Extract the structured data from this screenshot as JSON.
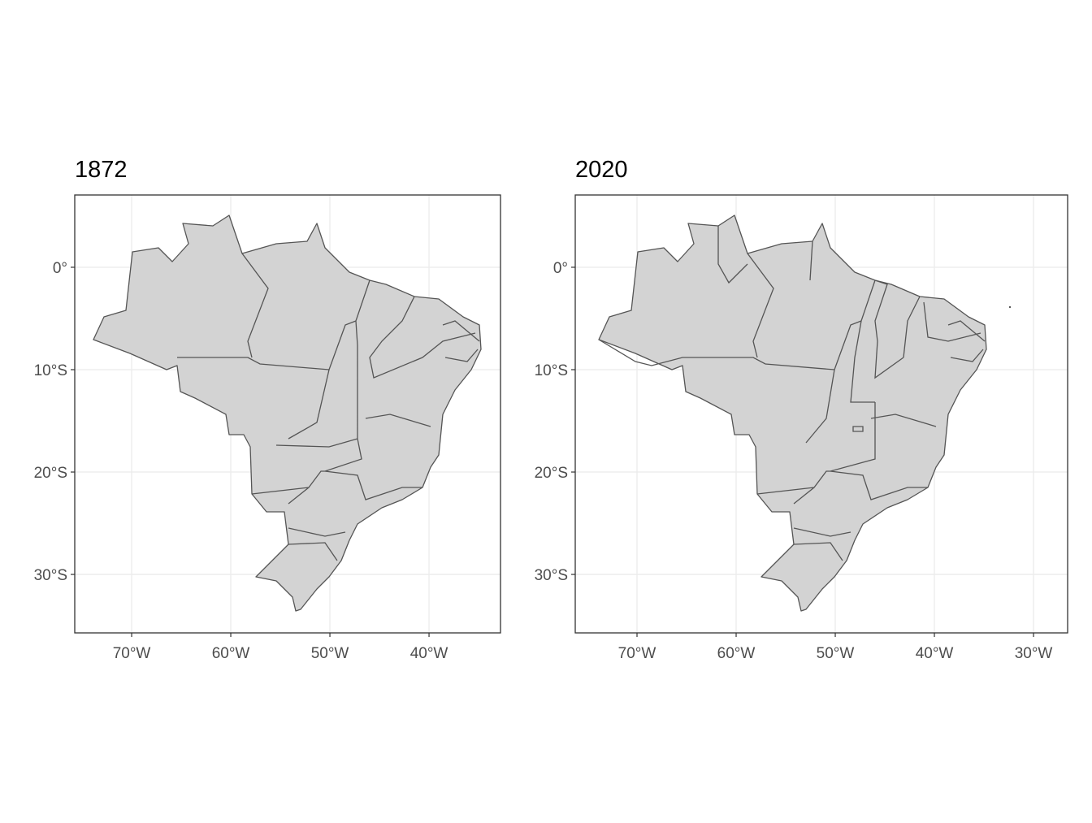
{
  "chart_data": [
    {
      "type": "map",
      "title": "1872",
      "grid": true,
      "xlim": [
        -75.74,
        -32.79
      ],
      "ylim": [
        -35.71,
        7.06
      ],
      "xticks": [
        {
          "value": -70,
          "label": "70°W"
        },
        {
          "value": -60,
          "label": "60°W"
        },
        {
          "value": -50,
          "label": "50°W"
        },
        {
          "value": -40,
          "label": "40°W"
        }
      ],
      "yticks": [
        {
          "value": 0,
          "label": "0°"
        },
        {
          "value": -10,
          "label": "10°S"
        },
        {
          "value": -20,
          "label": "20°S"
        },
        {
          "value": -30,
          "label": "30°S"
        }
      ]
    },
    {
      "type": "map",
      "title": "2020",
      "grid": true,
      "xlim": [
        -76.23,
        -26.56
      ],
      "ylim": [
        -35.71,
        7.06
      ],
      "xticks": [
        {
          "value": -70,
          "label": "70°W"
        },
        {
          "value": -60,
          "label": "60°W"
        },
        {
          "value": -50,
          "label": "50°W"
        },
        {
          "value": -40,
          "label": "40°W"
        },
        {
          "value": -30,
          "label": "30°W"
        }
      ],
      "yticks": [
        {
          "value": 0,
          "label": "0°"
        },
        {
          "value": -10,
          "label": "10°S"
        },
        {
          "value": -20,
          "label": "20°S"
        },
        {
          "value": -30,
          "label": "30°S"
        }
      ]
    }
  ]
}
